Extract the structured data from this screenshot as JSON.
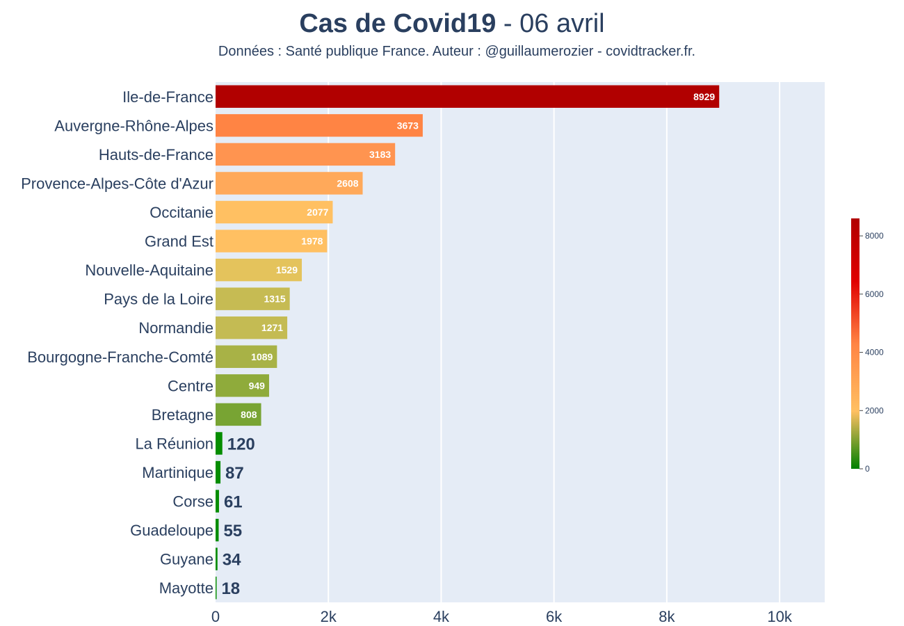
{
  "chart_data": {
    "type": "bar",
    "orientation": "horizontal",
    "title_bold": "Cas de Covid19",
    "title_rest": " - 06 avril",
    "subtitle": "Données : Santé publique France. Auteur : @guillaumerozier - covidtracker.fr.",
    "xlabel": "",
    "ylabel": "",
    "xlim": [
      0,
      10800
    ],
    "x_ticks": [
      {
        "value": 0,
        "label": "0"
      },
      {
        "value": 2000,
        "label": "2k"
      },
      {
        "value": 4000,
        "label": "4k"
      },
      {
        "value": 6000,
        "label": "6k"
      },
      {
        "value": 8000,
        "label": "8k"
      },
      {
        "value": 10000,
        "label": "10k"
      }
    ],
    "grid": true,
    "categories": [
      "Ile-de-France",
      "Auvergne-Rhône-Alpes",
      "Hauts-de-France",
      "Provence-Alpes-Côte d'Azur",
      "Occitanie",
      "Grand Est",
      "Nouvelle-Aquitaine",
      "Pays de la Loire",
      "Normandie",
      "Bourgogne-Franche-Comté",
      "Centre",
      "Bretagne",
      "La Réunion",
      "Martinique",
      "Corse",
      "Guadeloupe",
      "Guyane",
      "Mayotte"
    ],
    "values": [
      8929,
      3673,
      3183,
      2608,
      2077,
      1978,
      1529,
      1315,
      1271,
      1089,
      949,
      808,
      120,
      87,
      61,
      55,
      34,
      18
    ],
    "value_labels": [
      "8929",
      "3673",
      "3183",
      "2608",
      "2077",
      "1978",
      "1529",
      "1315",
      "1271",
      "1089",
      "949",
      "808",
      "120",
      "87",
      "61",
      "55",
      "34",
      "18"
    ],
    "bar_colors": [
      "#b10000",
      "#ff8444",
      "#ff9450",
      "#ffa95a",
      "#ffc062",
      "#ffc062",
      "#e4c35c",
      "#c6bb53",
      "#c4bb53",
      "#a8b246",
      "#8fab3b",
      "#78a433",
      "#058d00",
      "#058d00",
      "#058d00",
      "#058d00",
      "#058d00",
      "#058d00"
    ],
    "colorbar": {
      "range": [
        0,
        8600
      ],
      "ticks": [
        {
          "value": 0,
          "label": "0"
        },
        {
          "value": 2000,
          "label": "2000"
        },
        {
          "value": 4000,
          "label": "4000"
        },
        {
          "value": 6000,
          "label": "6000"
        },
        {
          "value": 8000,
          "label": "8000"
        }
      ],
      "stops": [
        {
          "offset": 0,
          "color": "#008000"
        },
        {
          "offset": 0.23,
          "color": "#ffc062"
        },
        {
          "offset": 0.5,
          "color": "#ff8444"
        },
        {
          "offset": 0.75,
          "color": "#e00000"
        },
        {
          "offset": 1,
          "color": "#b10000"
        }
      ]
    },
    "plot_bg_color": "#e5ecf6",
    "text_color": "#2a3f5f"
  }
}
